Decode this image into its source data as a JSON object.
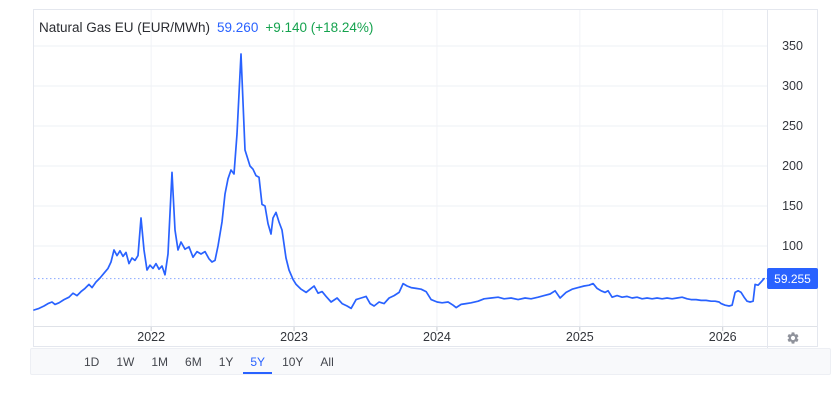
{
  "header": {
    "symbol": "Natural Gas EU (EUR/MWh)",
    "price": "59.260",
    "change": "+9.140 (+18.24%)"
  },
  "price_scale": {
    "current_label": "59.255"
  },
  "toolbar": {
    "ranges": [
      {
        "label": "1D",
        "active": false
      },
      {
        "label": "1W",
        "active": false
      },
      {
        "label": "1M",
        "active": false
      },
      {
        "label": "6M",
        "active": false
      },
      {
        "label": "1Y",
        "active": false
      },
      {
        "label": "5Y",
        "active": true
      },
      {
        "label": "10Y",
        "active": false
      },
      {
        "label": "All",
        "active": false
      }
    ]
  },
  "icons": {
    "settings": "gear-icon"
  },
  "colors": {
    "line_blue": "#2962FF",
    "price_label_bg": "#2962FF",
    "change_green": "#15A24E",
    "title_text": "#2A2C31",
    "axis_text": "#33363C",
    "gridline": "#EEF0F4",
    "card_border": "#E4E7EE",
    "toolbar_bg": "#F8F9FB"
  },
  "chart_data": {
    "type": "line",
    "title": "Natural Gas EU (EUR/MWh)",
    "units": "EUR/MWh",
    "grid": true,
    "xlim": [
      2021.18,
      2026.31
    ],
    "x_ticks": [
      2022,
      2023,
      2024,
      2025,
      2026
    ],
    "x_tick_labels": [
      "2022",
      "2023",
      "2024",
      "2025",
      "2026"
    ],
    "ylim": [
      0,
      395
    ],
    "y_ticks": [
      100,
      150,
      200,
      250,
      300,
      350
    ],
    "current_price": 59.255,
    "series": [
      {
        "name": "Natural Gas EU",
        "color": "#2962FF",
        "points": [
          [
            2021.18,
            20
          ],
          [
            2021.215,
            22
          ],
          [
            2021.25,
            25
          ],
          [
            2021.278,
            28
          ],
          [
            2021.306,
            30
          ],
          [
            2021.327,
            27
          ],
          [
            2021.355,
            29
          ],
          [
            2021.39,
            33
          ],
          [
            2021.425,
            36
          ],
          [
            2021.453,
            41
          ],
          [
            2021.481,
            38
          ],
          [
            2021.509,
            43
          ],
          [
            2021.537,
            47
          ],
          [
            2021.565,
            52
          ],
          [
            2021.586,
            48
          ],
          [
            2021.614,
            55
          ],
          [
            2021.642,
            60
          ],
          [
            2021.67,
            66
          ],
          [
            2021.698,
            72
          ],
          [
            2021.719,
            80
          ],
          [
            2021.74,
            95
          ],
          [
            2021.761,
            88
          ],
          [
            2021.782,
            94
          ],
          [
            2021.803,
            87
          ],
          [
            2021.824,
            92
          ],
          [
            2021.845,
            78
          ],
          [
            2021.866,
            85
          ],
          [
            2021.887,
            82
          ],
          [
            2021.908,
            88
          ],
          [
            2021.929,
            135
          ],
          [
            2021.95,
            95
          ],
          [
            2021.971,
            70
          ],
          [
            2021.992,
            76
          ],
          [
            2022.013,
            72
          ],
          [
            2022.034,
            78
          ],
          [
            2022.055,
            71
          ],
          [
            2022.076,
            75
          ],
          [
            2022.097,
            64
          ],
          [
            2022.118,
            90
          ],
          [
            2022.146,
            192
          ],
          [
            2022.167,
            120
          ],
          [
            2022.188,
            95
          ],
          [
            2022.209,
            105
          ],
          [
            2022.237,
            96
          ],
          [
            2022.265,
            99
          ],
          [
            2022.293,
            86
          ],
          [
            2022.321,
            93
          ],
          [
            2022.349,
            90
          ],
          [
            2022.377,
            93
          ],
          [
            2022.405,
            84
          ],
          [
            2022.426,
            80
          ],
          [
            2022.447,
            82
          ],
          [
            2022.468,
            100
          ],
          [
            2022.496,
            130
          ],
          [
            2022.517,
            165
          ],
          [
            2022.538,
            184
          ],
          [
            2022.559,
            195
          ],
          [
            2022.58,
            190
          ],
          [
            2022.601,
            240
          ],
          [
            2022.615,
            290
          ],
          [
            2022.629,
            340
          ],
          [
            2022.643,
            280
          ],
          [
            2022.657,
            220
          ],
          [
            2022.671,
            212
          ],
          [
            2022.692,
            200
          ],
          [
            2022.713,
            196
          ],
          [
            2022.734,
            188
          ],
          [
            2022.755,
            186
          ],
          [
            2022.776,
            152
          ],
          [
            2022.797,
            150
          ],
          [
            2022.818,
            128
          ],
          [
            2022.839,
            115
          ],
          [
            2022.853,
            135
          ],
          [
            2022.874,
            142
          ],
          [
            2022.895,
            130
          ],
          [
            2022.916,
            120
          ],
          [
            2022.944,
            85
          ],
          [
            2022.965,
            70
          ],
          [
            2022.993,
            58
          ],
          [
            2023.014,
            52
          ],
          [
            2023.049,
            46
          ],
          [
            2023.084,
            42
          ],
          [
            2023.112,
            46
          ],
          [
            2023.14,
            50
          ],
          [
            2023.168,
            41
          ],
          [
            2023.196,
            43
          ],
          [
            2023.224,
            37
          ],
          [
            2023.259,
            30
          ],
          [
            2023.301,
            35
          ],
          [
            2023.336,
            28
          ],
          [
            2023.371,
            25
          ],
          [
            2023.399,
            22
          ],
          [
            2023.434,
            33
          ],
          [
            2023.469,
            35
          ],
          [
            2023.504,
            37
          ],
          [
            2023.532,
            28
          ],
          [
            2023.56,
            25
          ],
          [
            2023.595,
            30
          ],
          [
            2023.63,
            28
          ],
          [
            2023.665,
            35
          ],
          [
            2023.7,
            38
          ],
          [
            2023.735,
            42
          ],
          [
            2023.763,
            53
          ],
          [
            2023.791,
            50
          ],
          [
            2023.819,
            48
          ],
          [
            2023.854,
            47
          ],
          [
            2023.889,
            46
          ],
          [
            2023.924,
            43
          ],
          [
            2023.959,
            33
          ],
          [
            2024.001,
            30
          ],
          [
            2024.036,
            29
          ],
          [
            2024.078,
            30
          ],
          [
            2024.113,
            26
          ],
          [
            2024.134,
            23
          ],
          [
            2024.169,
            27
          ],
          [
            2024.204,
            28
          ],
          [
            2024.239,
            29
          ],
          [
            2024.288,
            31
          ],
          [
            2024.33,
            34
          ],
          [
            2024.379,
            35
          ],
          [
            2024.428,
            36
          ],
          [
            2024.47,
            34
          ],
          [
            2024.519,
            35
          ],
          [
            2024.568,
            33
          ],
          [
            2024.617,
            35
          ],
          [
            2024.659,
            34
          ],
          [
            2024.708,
            36
          ],
          [
            2024.75,
            38
          ],
          [
            2024.792,
            40
          ],
          [
            2024.827,
            44
          ],
          [
            2024.862,
            35
          ],
          [
            2024.904,
            42
          ],
          [
            2024.946,
            46
          ],
          [
            2024.988,
            48
          ],
          [
            2025.03,
            50
          ],
          [
            2025.065,
            51
          ],
          [
            2025.093,
            53
          ],
          [
            2025.121,
            47
          ],
          [
            2025.149,
            44
          ],
          [
            2025.177,
            42
          ],
          [
            2025.198,
            44
          ],
          [
            2025.226,
            36
          ],
          [
            2025.261,
            38
          ],
          [
            2025.296,
            36
          ],
          [
            2025.331,
            37
          ],
          [
            2025.366,
            35
          ],
          [
            2025.401,
            36
          ],
          [
            2025.436,
            34
          ],
          [
            2025.471,
            35
          ],
          [
            2025.506,
            34
          ],
          [
            2025.541,
            35
          ],
          [
            2025.576,
            34
          ],
          [
            2025.611,
            35
          ],
          [
            2025.646,
            34
          ],
          [
            2025.681,
            35
          ],
          [
            2025.716,
            36
          ],
          [
            2025.751,
            34
          ],
          [
            2025.779,
            33
          ],
          [
            2025.814,
            33
          ],
          [
            2025.849,
            32
          ],
          [
            2025.884,
            32
          ],
          [
            2025.919,
            31
          ],
          [
            2025.947,
            31
          ],
          [
            2025.975,
            30
          ],
          [
            2025.989,
            28
          ],
          [
            2026.017,
            26
          ],
          [
            2026.045,
            25
          ],
          [
            2026.066,
            26
          ],
          [
            2026.087,
            42
          ],
          [
            2026.108,
            44
          ],
          [
            2026.129,
            42
          ],
          [
            2026.15,
            36
          ],
          [
            2026.171,
            31
          ],
          [
            2026.192,
            30
          ],
          [
            2026.213,
            31
          ],
          [
            2026.227,
            52
          ],
          [
            2026.248,
            51
          ],
          [
            2026.269,
            55
          ],
          [
            2026.29,
            59.26
          ]
        ]
      }
    ]
  }
}
